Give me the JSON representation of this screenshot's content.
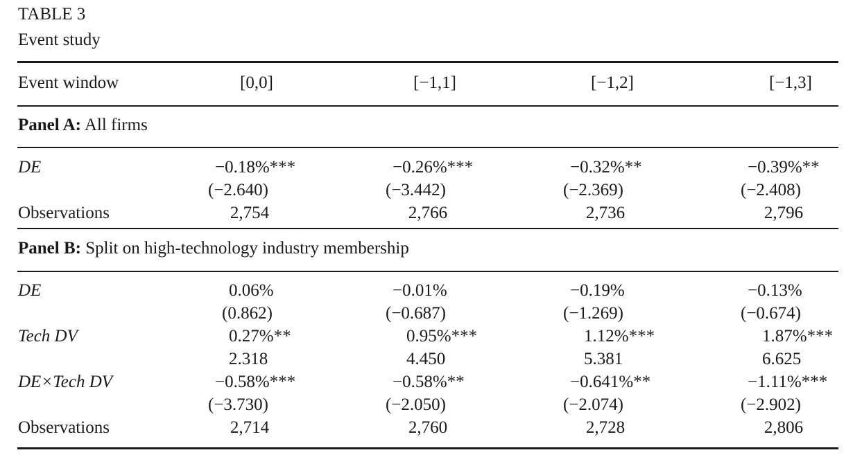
{
  "caption": {
    "label": "TABLE 3",
    "title": "Event study"
  },
  "header": {
    "row_label": "Event window",
    "columns": [
      "[0,0]",
      "[−1,1]",
      "[−1,2]",
      "[−1,3]"
    ]
  },
  "panel_a": {
    "label": "Panel A:",
    "title": "All firms",
    "rows": [
      {
        "label": "DE",
        "values": [
          "−0.18%***",
          "−0.26%***",
          "−0.32%**",
          "−0.39%**"
        ]
      },
      {
        "label": "",
        "values": [
          "(−2.640)",
          "(−3.442)",
          "(−2.369)",
          "(−2.408)"
        ]
      },
      {
        "label": "Observations",
        "values": [
          "2,754",
          "2,766",
          "2,736",
          "2,796"
        ]
      }
    ]
  },
  "panel_b": {
    "label": "Panel B:",
    "title": "Split on high-technology industry membership",
    "rows": [
      {
        "label": "DE",
        "values": [
          "0.06%",
          "−0.01%",
          "−0.19%",
          "−0.13%"
        ]
      },
      {
        "label": "",
        "values": [
          "(0.862)",
          "(−0.687)",
          "(−1.269)",
          "(−0.674)"
        ]
      },
      {
        "label": "Tech DV",
        "values": [
          "0.27%**",
          "0.95%***",
          "1.12%***",
          "1.87%***"
        ]
      },
      {
        "label": "",
        "values": [
          "2.318",
          "4.450",
          "5.381",
          "6.625"
        ]
      },
      {
        "label": "DE×Tech DV",
        "values": [
          "−0.58%***",
          "−0.58%**",
          "−0.641%**",
          "−1.11%***"
        ]
      },
      {
        "label": "",
        "values": [
          "(−3.730)",
          "(−2.050)",
          "(−2.074)",
          "(−2.902)"
        ]
      },
      {
        "label": "Observations",
        "values": [
          "2,714",
          "2,760",
          "2,728",
          "2,806"
        ]
      }
    ]
  }
}
